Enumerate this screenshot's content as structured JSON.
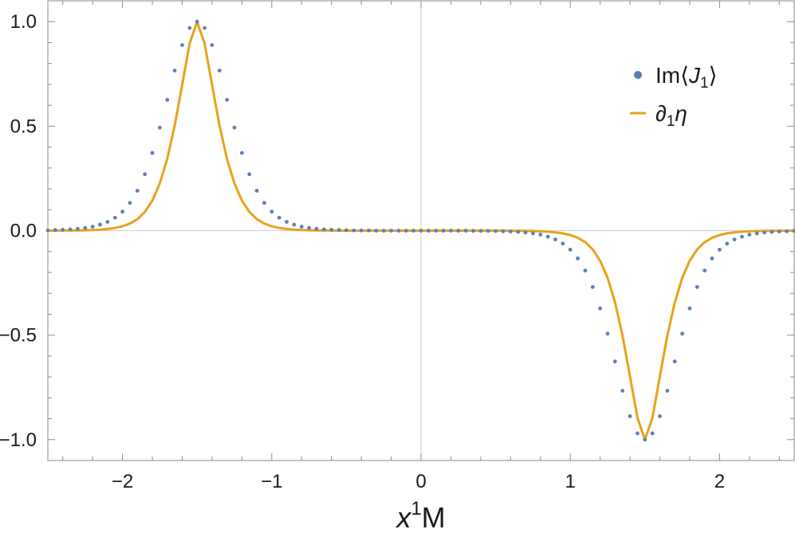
{
  "chart_data": {
    "type": "line",
    "xlabel": {
      "main": "x",
      "sup": "1",
      "tail": "M"
    },
    "xlim": [
      -2.5,
      2.5
    ],
    "ylim": [
      -1.1,
      1.1
    ],
    "xticks": [
      {
        "value": -2,
        "label": "−2"
      },
      {
        "value": -1,
        "label": "−1"
      },
      {
        "value": 0,
        "label": "0"
      },
      {
        "value": 1,
        "label": "1"
      },
      {
        "value": 2,
        "label": "2"
      }
    ],
    "yticks": [
      {
        "value": 1.0,
        "label": "1.0"
      },
      {
        "value": 0.5,
        "label": "0.5"
      },
      {
        "value": 0.0,
        "label": "0.0"
      },
      {
        "value": -0.5,
        "label": "−0.5"
      },
      {
        "value": -1.0,
        "label": "−1.0"
      }
    ],
    "x_minor_step": 0.2,
    "y_minor_step": 0.1,
    "zero_lines": true,
    "legend_position": "top-right",
    "series": [
      {
        "name": "Im⟨J1⟩",
        "legend": {
          "pre": "Im⟨",
          "italic": "J",
          "sub": "1",
          "post": "⟩"
        },
        "style": "points",
        "color": "#5b7fb5",
        "x": [
          -2.5,
          -2.45,
          -2.4,
          -2.35,
          -2.3,
          -2.25,
          -2.2,
          -2.15,
          -2.1,
          -2.05,
          -2.0,
          -1.95,
          -1.9,
          -1.85,
          -1.8,
          -1.75,
          -1.7,
          -1.65,
          -1.6,
          -1.55,
          -1.5,
          -1.45,
          -1.4,
          -1.35,
          -1.3,
          -1.25,
          -1.2,
          -1.15,
          -1.1,
          -1.05,
          -1.0,
          -0.95,
          -0.9,
          -0.85,
          -0.8,
          -0.75,
          -0.7,
          -0.65,
          -0.6,
          -0.55,
          -0.5,
          -0.45,
          -0.4,
          -0.35,
          -0.3,
          -0.25,
          -0.2,
          -0.15,
          -0.1,
          -0.05,
          0.0,
          0.05,
          0.1,
          0.15,
          0.2,
          0.25,
          0.3,
          0.35,
          0.4,
          0.45,
          0.5,
          0.55,
          0.6,
          0.65,
          0.7,
          0.75,
          0.8,
          0.85,
          0.9,
          0.95,
          1.0,
          1.05,
          1.1,
          1.15,
          1.2,
          1.25,
          1.3,
          1.35,
          1.4,
          1.45,
          1.5,
          1.55,
          1.6,
          1.65,
          1.7,
          1.75,
          1.8,
          1.85,
          1.9,
          1.95,
          2.0,
          2.05,
          2.1,
          2.15,
          2.2,
          2.25,
          2.3,
          2.35,
          2.4,
          2.45,
          2.5
        ],
        "y": [
          0.001,
          0.003,
          0.004,
          0.006,
          0.009,
          0.013,
          0.019,
          0.029,
          0.042,
          0.062,
          0.091,
          0.133,
          0.191,
          0.27,
          0.372,
          0.493,
          0.626,
          0.766,
          0.888,
          0.97,
          1.0,
          0.97,
          0.888,
          0.766,
          0.626,
          0.493,
          0.372,
          0.27,
          0.191,
          0.133,
          0.091,
          0.062,
          0.042,
          0.029,
          0.019,
          0.013,
          0.009,
          0.006,
          0.004,
          0.003,
          0.002,
          0.001,
          0.001,
          0.001,
          0.0,
          0.0,
          0.0,
          0.0,
          0.0,
          0.0,
          0.0,
          0.0,
          0.0,
          0.0,
          0.0,
          0.0,
          -0.0,
          -0.001,
          -0.001,
          -0.001,
          -0.002,
          -0.003,
          -0.004,
          -0.006,
          -0.009,
          -0.013,
          -0.019,
          -0.029,
          -0.042,
          -0.062,
          -0.091,
          -0.133,
          -0.191,
          -0.27,
          -0.372,
          -0.493,
          -0.626,
          -0.766,
          -0.888,
          -0.97,
          -1.0,
          -0.97,
          -0.888,
          -0.766,
          -0.626,
          -0.493,
          -0.372,
          -0.27,
          -0.191,
          -0.133,
          -0.091,
          -0.062,
          -0.042,
          -0.029,
          -0.019,
          -0.013,
          -0.009,
          -0.006,
          -0.004,
          -0.003,
          -0.001
        ]
      },
      {
        "name": "∂1η",
        "legend": {
          "pre": "",
          "italic": "∂",
          "sub": "1",
          "post": "η"
        },
        "style": "line",
        "color": "#e8a21a",
        "x": [
          -2.5,
          -2.45,
          -2.4,
          -2.35,
          -2.3,
          -2.25,
          -2.2,
          -2.15,
          -2.1,
          -2.05,
          -2.0,
          -1.95,
          -1.9,
          -1.85,
          -1.8,
          -1.75,
          -1.7,
          -1.65,
          -1.6,
          -1.55,
          -1.5,
          -1.45,
          -1.4,
          -1.35,
          -1.3,
          -1.25,
          -1.2,
          -1.15,
          -1.1,
          -1.05,
          -1.0,
          -0.95,
          -0.9,
          -0.85,
          -0.8,
          -0.75,
          -0.7,
          -0.65,
          -0.6,
          -0.55,
          -0.5,
          -0.45,
          -0.4,
          -0.35,
          -0.3,
          -0.25,
          -0.2,
          -0.15,
          -0.1,
          -0.05,
          0.0,
          0.05,
          0.1,
          0.15,
          0.2,
          0.25,
          0.3,
          0.35,
          0.4,
          0.45,
          0.5,
          0.55,
          0.6,
          0.65,
          0.7,
          0.75,
          0.8,
          0.85,
          0.9,
          0.95,
          1.0,
          1.05,
          1.1,
          1.15,
          1.2,
          1.25,
          1.3,
          1.35,
          1.4,
          1.45,
          1.5,
          1.55,
          1.6,
          1.65,
          1.7,
          1.75,
          1.8,
          1.85,
          1.9,
          1.95,
          2.0,
          2.05,
          2.1,
          2.15,
          2.2,
          2.25,
          2.3,
          2.35,
          2.4,
          2.45,
          2.5
        ],
        "y": [
          0.0,
          0.0,
          0.001,
          0.001,
          0.001,
          0.002,
          0.003,
          0.005,
          0.008,
          0.013,
          0.021,
          0.034,
          0.055,
          0.09,
          0.144,
          0.226,
          0.344,
          0.503,
          0.698,
          0.896,
          1.0,
          0.896,
          0.698,
          0.503,
          0.344,
          0.226,
          0.144,
          0.09,
          0.055,
          0.034,
          0.021,
          0.013,
          0.008,
          0.005,
          0.003,
          0.002,
          0.001,
          0.001,
          0.001,
          0.0,
          0.0,
          0.0,
          0.0,
          0.0,
          0.0,
          0.0,
          0.0,
          0.0,
          0.0,
          0.0,
          0.0,
          0.0,
          0.0,
          0.0,
          0.0,
          0.0,
          0.0,
          0.0,
          0.0,
          0.0,
          0.0,
          -0.0,
          -0.001,
          -0.001,
          -0.001,
          -0.002,
          -0.003,
          -0.005,
          -0.008,
          -0.013,
          -0.021,
          -0.034,
          -0.055,
          -0.09,
          -0.144,
          -0.226,
          -0.344,
          -0.503,
          -0.698,
          -0.896,
          -1.0,
          -0.896,
          -0.698,
          -0.503,
          -0.344,
          -0.226,
          -0.144,
          -0.09,
          -0.055,
          -0.034,
          -0.021,
          -0.013,
          -0.008,
          -0.005,
          -0.003,
          -0.002,
          -0.001,
          -0.001,
          -0.001,
          0.0,
          0.0
        ]
      }
    ]
  }
}
